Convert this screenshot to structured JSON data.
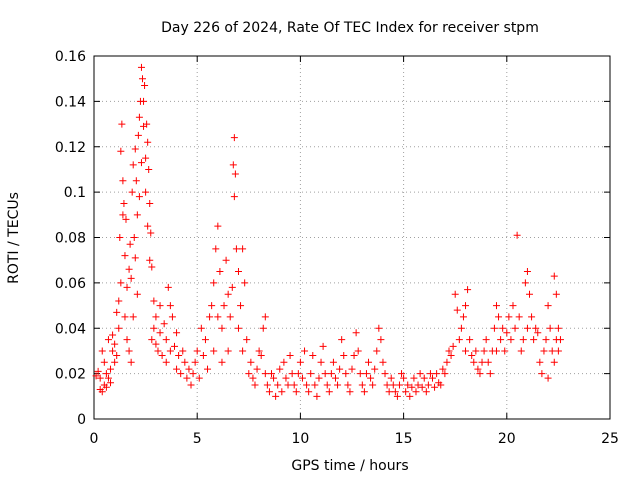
{
  "chart_data": {
    "type": "scatter",
    "title": "Day 226 of 2024, Rate Of TEC Index for receiver stpm",
    "xlabel": "GPS time / hours",
    "ylabel": "ROTI / TECUs",
    "xlim": [
      0,
      25
    ],
    "ylim": [
      0,
      0.16
    ],
    "xticks": [
      0,
      5,
      10,
      15,
      20,
      25
    ],
    "yticks": [
      0,
      0.02,
      0.04,
      0.06,
      0.08,
      0.1,
      0.12,
      0.14,
      0.16
    ],
    "xtick_labels": [
      "0",
      "5",
      "10",
      "15",
      "20",
      "25"
    ],
    "ytick_labels": [
      "0",
      "0.02",
      "0.04",
      "0.06",
      "0.08",
      "0.1",
      "0.12",
      "0.14",
      "0.16"
    ],
    "grid": true,
    "marker": "+",
    "color": "#ff0000",
    "series": [
      {
        "name": "ROTI",
        "points": [
          [
            0.1,
            0.019
          ],
          [
            0.2,
            0.021
          ],
          [
            0.3,
            0.013
          ],
          [
            0.3,
            0.018
          ],
          [
            0.4,
            0.012
          ],
          [
            0.4,
            0.03
          ],
          [
            0.5,
            0.015
          ],
          [
            0.5,
            0.025
          ],
          [
            0.6,
            0.02
          ],
          [
            0.6,
            0.014
          ],
          [
            0.7,
            0.035
          ],
          [
            0.7,
            0.018
          ],
          [
            0.8,
            0.022
          ],
          [
            0.8,
            0.016
          ],
          [
            0.9,
            0.03
          ],
          [
            0.9,
            0.037
          ],
          [
            1.0,
            0.025
          ],
          [
            1.0,
            0.033
          ],
          [
            1.1,
            0.028
          ],
          [
            1.1,
            0.047
          ],
          [
            1.2,
            0.04
          ],
          [
            1.2,
            0.052
          ],
          [
            1.25,
            0.08
          ],
          [
            1.3,
            0.06
          ],
          [
            1.3,
            0.118
          ],
          [
            1.35,
            0.13
          ],
          [
            1.4,
            0.105
          ],
          [
            1.4,
            0.09
          ],
          [
            1.45,
            0.095
          ],
          [
            1.5,
            0.072
          ],
          [
            1.5,
            0.045
          ],
          [
            1.55,
            0.088
          ],
          [
            1.6,
            0.035
          ],
          [
            1.6,
            0.058
          ],
          [
            1.7,
            0.03
          ],
          [
            1.7,
            0.066
          ],
          [
            1.75,
            0.077
          ],
          [
            1.8,
            0.062
          ],
          [
            1.8,
            0.025
          ],
          [
            1.85,
            0.1
          ],
          [
            1.9,
            0.112
          ],
          [
            1.9,
            0.045
          ],
          [
            1.95,
            0.08
          ],
          [
            2.0,
            0.119
          ],
          [
            2.0,
            0.071
          ],
          [
            2.05,
            0.105
          ],
          [
            2.1,
            0.09
          ],
          [
            2.1,
            0.055
          ],
          [
            2.15,
            0.125
          ],
          [
            2.2,
            0.133
          ],
          [
            2.2,
            0.098
          ],
          [
            2.25,
            0.14
          ],
          [
            2.3,
            0.155
          ],
          [
            2.3,
            0.113
          ],
          [
            2.35,
            0.15
          ],
          [
            2.4,
            0.129
          ],
          [
            2.4,
            0.14
          ],
          [
            2.45,
            0.147
          ],
          [
            2.5,
            0.115
          ],
          [
            2.5,
            0.1
          ],
          [
            2.55,
            0.13
          ],
          [
            2.6,
            0.122
          ],
          [
            2.6,
            0.085
          ],
          [
            2.65,
            0.11
          ],
          [
            2.7,
            0.095
          ],
          [
            2.7,
            0.07
          ],
          [
            2.75,
            0.082
          ],
          [
            2.8,
            0.067
          ],
          [
            2.8,
            0.035
          ],
          [
            2.9,
            0.052
          ],
          [
            2.9,
            0.04
          ],
          [
            3.0,
            0.033
          ],
          [
            3.0,
            0.045
          ],
          [
            3.1,
            0.03
          ],
          [
            3.2,
            0.05
          ],
          [
            3.2,
            0.038
          ],
          [
            3.3,
            0.028
          ],
          [
            3.4,
            0.042
          ],
          [
            3.5,
            0.035
          ],
          [
            3.5,
            0.025
          ],
          [
            3.6,
            0.058
          ],
          [
            3.7,
            0.05
          ],
          [
            3.7,
            0.03
          ],
          [
            3.8,
            0.045
          ],
          [
            3.9,
            0.032
          ],
          [
            4.0,
            0.038
          ],
          [
            4.0,
            0.022
          ],
          [
            4.1,
            0.028
          ],
          [
            4.2,
            0.02
          ],
          [
            4.3,
            0.03
          ],
          [
            4.4,
            0.025
          ],
          [
            4.5,
            0.018
          ],
          [
            4.6,
            0.022
          ],
          [
            4.7,
            0.015
          ],
          [
            4.8,
            0.02
          ],
          [
            4.9,
            0.025
          ],
          [
            5.0,
            0.03
          ],
          [
            5.1,
            0.018
          ],
          [
            5.2,
            0.04
          ],
          [
            5.3,
            0.028
          ],
          [
            5.4,
            0.035
          ],
          [
            5.5,
            0.022
          ],
          [
            5.6,
            0.045
          ],
          [
            5.7,
            0.05
          ],
          [
            5.8,
            0.06
          ],
          [
            5.8,
            0.03
          ],
          [
            5.9,
            0.075
          ],
          [
            6.0,
            0.085
          ],
          [
            6.0,
            0.045
          ],
          [
            6.1,
            0.065
          ],
          [
            6.2,
            0.04
          ],
          [
            6.2,
            0.025
          ],
          [
            6.3,
            0.05
          ],
          [
            6.4,
            0.07
          ],
          [
            6.5,
            0.055
          ],
          [
            6.5,
            0.03
          ],
          [
            6.6,
            0.045
          ],
          [
            6.7,
            0.058
          ],
          [
            6.75,
            0.112
          ],
          [
            6.8,
            0.124
          ],
          [
            6.8,
            0.098
          ],
          [
            6.85,
            0.108
          ],
          [
            6.9,
            0.075
          ],
          [
            7.0,
            0.065
          ],
          [
            7.0,
            0.04
          ],
          [
            7.1,
            0.05
          ],
          [
            7.2,
            0.075
          ],
          [
            7.2,
            0.03
          ],
          [
            7.3,
            0.06
          ],
          [
            7.4,
            0.035
          ],
          [
            7.5,
            0.02
          ],
          [
            7.6,
            0.025
          ],
          [
            7.7,
            0.018
          ],
          [
            7.8,
            0.015
          ],
          [
            7.9,
            0.022
          ],
          [
            8.0,
            0.03
          ],
          [
            8.1,
            0.028
          ],
          [
            8.2,
            0.04
          ],
          [
            8.3,
            0.045
          ],
          [
            8.3,
            0.02
          ],
          [
            8.4,
            0.015
          ],
          [
            8.5,
            0.012
          ],
          [
            8.6,
            0.02
          ],
          [
            8.7,
            0.018
          ],
          [
            8.8,
            0.01
          ],
          [
            8.9,
            0.015
          ],
          [
            9.0,
            0.022
          ],
          [
            9.1,
            0.012
          ],
          [
            9.2,
            0.025
          ],
          [
            9.3,
            0.018
          ],
          [
            9.4,
            0.015
          ],
          [
            9.5,
            0.028
          ],
          [
            9.6,
            0.02
          ],
          [
            9.7,
            0.015
          ],
          [
            9.8,
            0.012
          ],
          [
            9.9,
            0.02
          ],
          [
            10.0,
            0.025
          ],
          [
            10.1,
            0.018
          ],
          [
            10.2,
            0.03
          ],
          [
            10.3,
            0.015
          ],
          [
            10.4,
            0.012
          ],
          [
            10.5,
            0.02
          ],
          [
            10.6,
            0.028
          ],
          [
            10.7,
            0.015
          ],
          [
            10.8,
            0.01
          ],
          [
            10.9,
            0.018
          ],
          [
            11.0,
            0.025
          ],
          [
            11.1,
            0.032
          ],
          [
            11.2,
            0.02
          ],
          [
            11.3,
            0.015
          ],
          [
            11.4,
            0.012
          ],
          [
            11.5,
            0.02
          ],
          [
            11.6,
            0.025
          ],
          [
            11.7,
            0.018
          ],
          [
            11.8,
            0.015
          ],
          [
            11.9,
            0.022
          ],
          [
            12.0,
            0.035
          ],
          [
            12.1,
            0.028
          ],
          [
            12.2,
            0.02
          ],
          [
            12.3,
            0.015
          ],
          [
            12.4,
            0.012
          ],
          [
            12.5,
            0.022
          ],
          [
            12.6,
            0.028
          ],
          [
            12.7,
            0.038
          ],
          [
            12.8,
            0.03
          ],
          [
            12.9,
            0.02
          ],
          [
            13.0,
            0.015
          ],
          [
            13.1,
            0.012
          ],
          [
            13.2,
            0.02
          ],
          [
            13.3,
            0.025
          ],
          [
            13.4,
            0.018
          ],
          [
            13.5,
            0.015
          ],
          [
            13.6,
            0.022
          ],
          [
            13.7,
            0.03
          ],
          [
            13.8,
            0.04
          ],
          [
            13.9,
            0.035
          ],
          [
            14.0,
            0.025
          ],
          [
            14.1,
            0.02
          ],
          [
            14.2,
            0.015
          ],
          [
            14.3,
            0.012
          ],
          [
            14.4,
            0.018
          ],
          [
            14.5,
            0.015
          ],
          [
            14.6,
            0.012
          ],
          [
            14.7,
            0.01
          ],
          [
            14.8,
            0.015
          ],
          [
            14.9,
            0.02
          ],
          [
            15.0,
            0.018
          ],
          [
            15.1,
            0.012
          ],
          [
            15.2,
            0.015
          ],
          [
            15.3,
            0.01
          ],
          [
            15.4,
            0.014
          ],
          [
            15.5,
            0.018
          ],
          [
            15.6,
            0.012
          ],
          [
            15.7,
            0.015
          ],
          [
            15.8,
            0.02
          ],
          [
            15.9,
            0.014
          ],
          [
            16.0,
            0.018
          ],
          [
            16.1,
            0.012
          ],
          [
            16.2,
            0.015
          ],
          [
            16.3,
            0.02
          ],
          [
            16.4,
            0.018
          ],
          [
            16.5,
            0.014
          ],
          [
            16.6,
            0.02
          ],
          [
            16.7,
            0.016
          ],
          [
            16.8,
            0.015
          ],
          [
            16.9,
            0.022
          ],
          [
            17.0,
            0.02
          ],
          [
            17.1,
            0.025
          ],
          [
            17.2,
            0.03
          ],
          [
            17.3,
            0.028
          ],
          [
            17.4,
            0.032
          ],
          [
            17.5,
            0.055
          ],
          [
            17.6,
            0.048
          ],
          [
            17.7,
            0.035
          ],
          [
            17.8,
            0.04
          ],
          [
            17.9,
            0.045
          ],
          [
            18.0,
            0.05
          ],
          [
            18.0,
            0.03
          ],
          [
            18.1,
            0.057
          ],
          [
            18.2,
            0.035
          ],
          [
            18.3,
            0.028
          ],
          [
            18.4,
            0.025
          ],
          [
            18.5,
            0.03
          ],
          [
            18.6,
            0.022
          ],
          [
            18.7,
            0.02
          ],
          [
            18.8,
            0.025
          ],
          [
            18.9,
            0.03
          ],
          [
            19.0,
            0.035
          ],
          [
            19.1,
            0.025
          ],
          [
            19.2,
            0.02
          ],
          [
            19.3,
            0.03
          ],
          [
            19.4,
            0.04
          ],
          [
            19.5,
            0.05
          ],
          [
            19.5,
            0.03
          ],
          [
            19.6,
            0.045
          ],
          [
            19.7,
            0.035
          ],
          [
            19.8,
            0.04
          ],
          [
            19.9,
            0.03
          ],
          [
            20.0,
            0.038
          ],
          [
            20.1,
            0.045
          ],
          [
            20.2,
            0.035
          ],
          [
            20.3,
            0.05
          ],
          [
            20.4,
            0.04
          ],
          [
            20.5,
            0.081
          ],
          [
            20.6,
            0.045
          ],
          [
            20.7,
            0.03
          ],
          [
            20.8,
            0.035
          ],
          [
            20.9,
            0.06
          ],
          [
            21.0,
            0.065
          ],
          [
            21.0,
            0.04
          ],
          [
            21.1,
            0.055
          ],
          [
            21.2,
            0.045
          ],
          [
            21.3,
            0.035
          ],
          [
            21.4,
            0.04
          ],
          [
            21.5,
            0.038
          ],
          [
            21.6,
            0.025
          ],
          [
            21.7,
            0.02
          ],
          [
            21.8,
            0.03
          ],
          [
            21.9,
            0.035
          ],
          [
            22.0,
            0.05
          ],
          [
            22.0,
            0.018
          ],
          [
            22.1,
            0.04
          ],
          [
            22.2,
            0.03
          ],
          [
            22.3,
            0.063
          ],
          [
            22.3,
            0.025
          ],
          [
            22.4,
            0.055
          ],
          [
            22.4,
            0.035
          ],
          [
            22.5,
            0.04
          ],
          [
            22.5,
            0.03
          ],
          [
            22.6,
            0.035
          ]
        ]
      }
    ]
  }
}
